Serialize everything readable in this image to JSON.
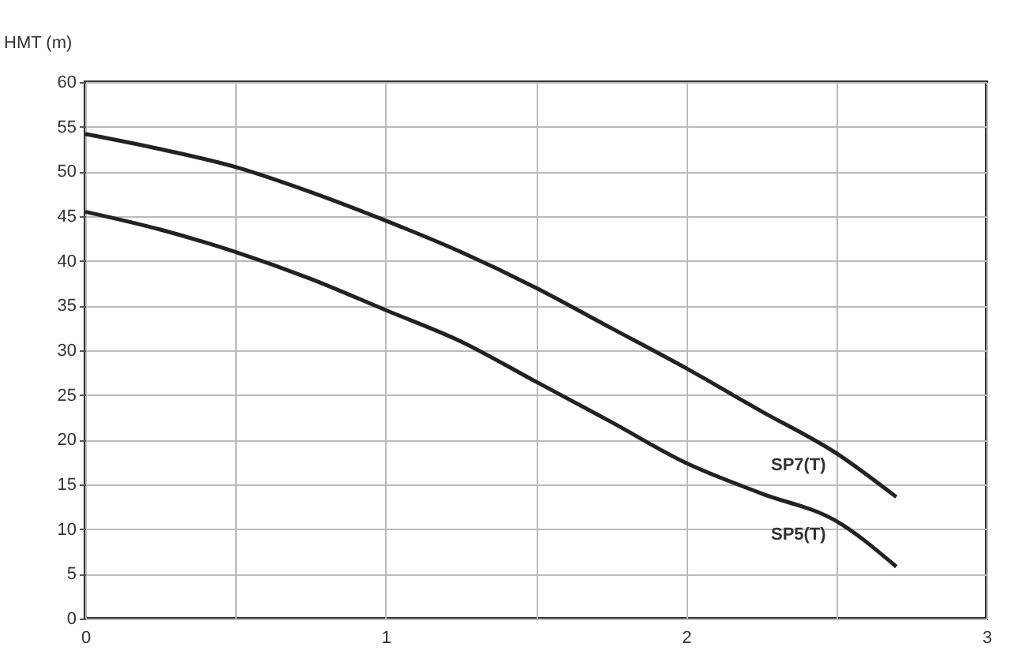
{
  "chart_data": {
    "type": "line",
    "ylabel": "HMT (m)",
    "x": [
      0,
      0.25,
      0.5,
      0.75,
      1,
      1.25,
      1.5,
      1.75,
      2,
      2.25,
      2.5,
      2.7
    ],
    "series": [
      {
        "name": "SP7(T)",
        "color": "#222222",
        "values": [
          54.2,
          52.5,
          50.5,
          47.7,
          44.5,
          41,
          37,
          32.5,
          28,
          23.2,
          18.5,
          13.6
        ]
      },
      {
        "name": "SP5(T)",
        "color": "#222222",
        "values": [
          45.5,
          43.5,
          41,
          38,
          34.5,
          31,
          26.5,
          22,
          17.4,
          14,
          10.9,
          5.8
        ]
      }
    ],
    "xlim": [
      0,
      3
    ],
    "xticks": [
      0,
      {
        "value": 0.5,
        "label": null
      },
      1,
      {
        "value": 1.5,
        "label": null
      },
      2,
      {
        "value": 2.5,
        "label": null
      },
      3
    ],
    "ylim": [
      0,
      60
    ],
    "yticks": [
      0,
      5,
      10,
      15,
      20,
      25,
      30,
      35,
      40,
      45,
      50,
      55,
      60
    ],
    "grid": true,
    "legend": false,
    "marker": "none",
    "line_style": "solid"
  }
}
